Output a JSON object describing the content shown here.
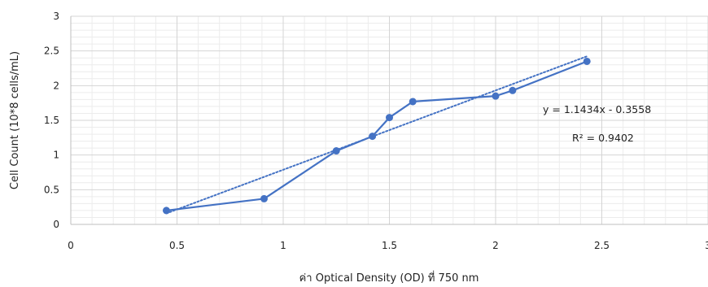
{
  "chart_data": {
    "type": "scatter",
    "xlabel": "ค่า Optical Density (OD) ที่ 750 nm",
    "ylabel": "Cell Count (10*8 cells/mL)",
    "xlim": [
      0,
      3
    ],
    "ylim": [
      0,
      3
    ],
    "x_ticks": [
      "0",
      "0.5",
      "1",
      "1.5",
      "2",
      "2.5",
      "3"
    ],
    "y_ticks": [
      "0",
      "0.5",
      "1",
      "1.5",
      "2",
      "2.5",
      "3"
    ],
    "grid": "major and minor",
    "series": [
      {
        "color": "#4472C4",
        "marker": "circle",
        "line": "solid",
        "points": [
          {
            "x": 0.45,
            "y": 0.2
          },
          {
            "x": 0.91,
            "y": 0.37
          },
          {
            "x": 1.25,
            "y": 1.06
          },
          {
            "x": 1.42,
            "y": 1.27
          },
          {
            "x": 1.5,
            "y": 1.54
          },
          {
            "x": 1.61,
            "y": 1.77
          },
          {
            "x": 2.0,
            "y": 1.85
          },
          {
            "x": 2.08,
            "y": 1.93
          },
          {
            "x": 2.43,
            "y": 2.35
          }
        ]
      }
    ],
    "trendline": {
      "type": "linear",
      "style": "dotted",
      "color": "#4472C4",
      "slope": 1.1434,
      "intercept": -0.3558,
      "x_range": [
        0.45,
        2.43
      ],
      "equation_label": "y = 1.1434x - 0.3558",
      "r2_label": "R² = 0.9402"
    }
  }
}
